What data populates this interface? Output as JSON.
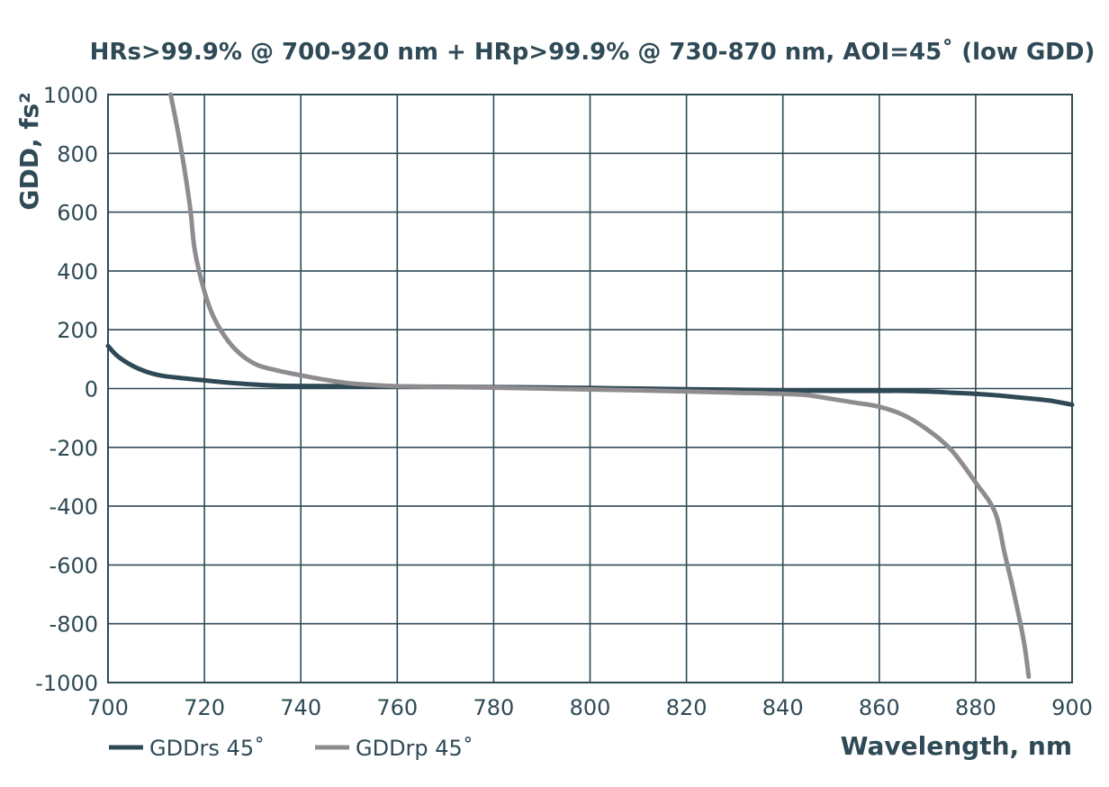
{
  "chart_data": {
    "type": "line",
    "title": "HRs>99.9% @ 700-920 nm + HRp>99.9% @ 730-870 nm, AOI=45˚ (low GDD)",
    "xlabel": "Wavelength, nm",
    "ylabel": "GDD, fs²",
    "xlim": [
      700,
      900
    ],
    "ylim": [
      -1000,
      1000
    ],
    "xticks": [
      "700",
      "720",
      "740",
      "760",
      "780",
      "800",
      "820",
      "840",
      "860",
      "880",
      "900"
    ],
    "yticks": [
      "1000",
      "800",
      "600",
      "400",
      "200",
      "0",
      "-200",
      "-400",
      "-600",
      "-800",
      "-1000"
    ],
    "grid": true,
    "legend_position": "bottom-left",
    "series": [
      {
        "name": "GDDrs 45˚",
        "color": "#2f4a56",
        "x": [
          700,
          702,
          705,
          708,
          711,
          715,
          720,
          725,
          730,
          735,
          740,
          750,
          760,
          770,
          780,
          790,
          800,
          810,
          820,
          830,
          840,
          850,
          860,
          865,
          870,
          875,
          880,
          885,
          890,
          895,
          900
        ],
        "y": [
          145,
          110,
          78,
          57,
          44,
          36,
          28,
          20,
          14,
          10,
          9,
          8,
          7,
          6,
          5,
          4,
          2,
          0,
          -2,
          -4,
          -6,
          -8,
          -8,
          -8,
          -10,
          -14,
          -18,
          -24,
          -32,
          -40,
          -55
        ]
      },
      {
        "name": "GDDrp 45˚",
        "color": "#8e8c8e",
        "x": [
          713,
          715,
          717,
          718,
          720,
          722,
          725,
          728,
          731,
          735,
          740,
          745,
          750,
          755,
          760,
          770,
          780,
          790,
          800,
          810,
          820,
          830,
          840,
          845,
          850,
          855,
          860,
          865,
          870,
          875,
          880,
          884,
          886,
          888,
          890,
          891
        ],
        "y": [
          1000,
          830,
          620,
          470,
          330,
          240,
          160,
          110,
          80,
          62,
          45,
          30,
          18,
          12,
          8,
          5,
          3,
          0,
          -3,
          -6,
          -10,
          -14,
          -18,
          -22,
          -35,
          -48,
          -62,
          -90,
          -140,
          -210,
          -320,
          -420,
          -560,
          -700,
          -860,
          -980
        ]
      }
    ]
  }
}
